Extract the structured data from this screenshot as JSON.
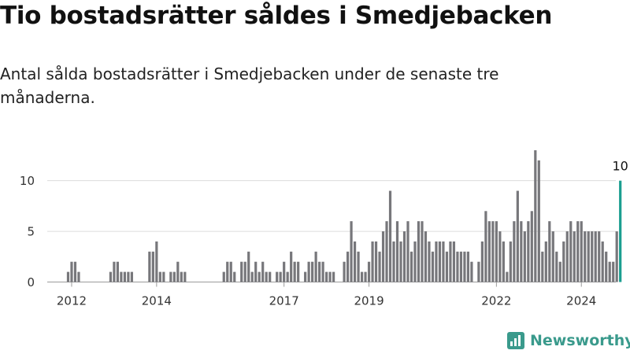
{
  "header": {
    "title": "Tio bostadsrätter såldes i Smedjebacken",
    "subtitle": "Antal sålda bostadsrätter i Smedjebacken under de senaste tre månaderna."
  },
  "brand": {
    "name": "Newsworthy",
    "icon": "newsworthy-logo-icon",
    "color": "#3a9a8c"
  },
  "chart_data": {
    "type": "bar",
    "title": "",
    "xlabel": "",
    "ylabel": "",
    "ylim": [
      0,
      13
    ],
    "y_ticks": [
      0,
      5,
      10
    ],
    "x_start": "2012-01",
    "x_tick_labels": [
      {
        "label": "2012",
        "index": 6
      },
      {
        "label": "2014",
        "index": 30
      },
      {
        "label": "2017",
        "index": 66
      },
      {
        "label": "2019",
        "index": 90
      },
      {
        "label": "2022",
        "index": 126
      },
      {
        "label": "2024",
        "index": 150
      }
    ],
    "bar_color": "#77777b",
    "highlight_color": "#1a9e90",
    "highlight_label": "10",
    "grid": true,
    "values": [
      0,
      0,
      0,
      0,
      0,
      1,
      2,
      2,
      1,
      0,
      0,
      0,
      0,
      0,
      0,
      0,
      0,
      1,
      2,
      2,
      1,
      1,
      1,
      1,
      0,
      0,
      0,
      0,
      3,
      3,
      4,
      1,
      1,
      0,
      1,
      1,
      2,
      1,
      1,
      0,
      0,
      0,
      0,
      0,
      0,
      0,
      0,
      0,
      0,
      1,
      2,
      2,
      1,
      0,
      2,
      2,
      3,
      1,
      2,
      1,
      2,
      1,
      1,
      0,
      1,
      1,
      2,
      1,
      3,
      2,
      2,
      0,
      1,
      2,
      2,
      3,
      2,
      2,
      1,
      1,
      1,
      0,
      0,
      2,
      3,
      6,
      4,
      3,
      1,
      1,
      2,
      4,
      4,
      3,
      5,
      6,
      9,
      4,
      6,
      4,
      5,
      6,
      3,
      4,
      6,
      6,
      5,
      4,
      3,
      4,
      4,
      4,
      3,
      4,
      4,
      3,
      3,
      3,
      3,
      2,
      0,
      2,
      4,
      7,
      6,
      6,
      6,
      5,
      4,
      1,
      4,
      6,
      9,
      6,
      5,
      6,
      7,
      13,
      12,
      3,
      4,
      6,
      5,
      3,
      2,
      4,
      5,
      6,
      5,
      6,
      6,
      5,
      5,
      5,
      5,
      5,
      4,
      3,
      2,
      2,
      5,
      10
    ]
  }
}
